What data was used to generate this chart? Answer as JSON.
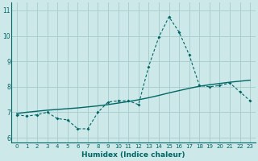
{
  "xlabel": "Humidex (Indice chaleur)",
  "xlim": [
    -0.5,
    23.5
  ],
  "ylim": [
    5.8,
    11.3
  ],
  "yticks": [
    6,
    7,
    8,
    9,
    10,
    11
  ],
  "xticks": [
    0,
    1,
    2,
    3,
    4,
    5,
    6,
    7,
    8,
    9,
    10,
    11,
    12,
    13,
    14,
    15,
    16,
    17,
    18,
    19,
    20,
    21,
    22,
    23
  ],
  "bg_color": "#cce8e8",
  "grid_color": "#aacece",
  "line_color": "#006666",
  "line1_x": [
    0,
    1,
    2,
    3,
    4,
    5,
    6,
    7,
    8,
    9,
    10,
    11,
    12,
    13,
    14,
    15,
    16,
    17,
    18,
    19,
    20,
    21,
    22,
    23
  ],
  "line1_y": [
    6.9,
    6.85,
    6.9,
    7.0,
    6.75,
    6.7,
    6.35,
    6.35,
    7.0,
    7.4,
    7.45,
    7.45,
    7.3,
    8.8,
    9.95,
    10.75,
    10.15,
    9.25,
    8.05,
    8.0,
    8.05,
    8.15,
    7.8,
    7.45
  ],
  "line2_x": [
    0,
    1,
    2,
    3,
    4,
    5,
    6,
    7,
    8,
    9,
    10,
    11,
    12,
    13,
    14,
    15,
    16,
    17,
    18,
    19,
    20,
    21,
    22,
    23
  ],
  "line2_y": [
    6.95,
    7.0,
    7.04,
    7.08,
    7.11,
    7.14,
    7.17,
    7.21,
    7.25,
    7.3,
    7.36,
    7.42,
    7.49,
    7.57,
    7.66,
    7.76,
    7.85,
    7.94,
    8.02,
    8.08,
    8.13,
    8.18,
    8.22,
    8.26
  ]
}
